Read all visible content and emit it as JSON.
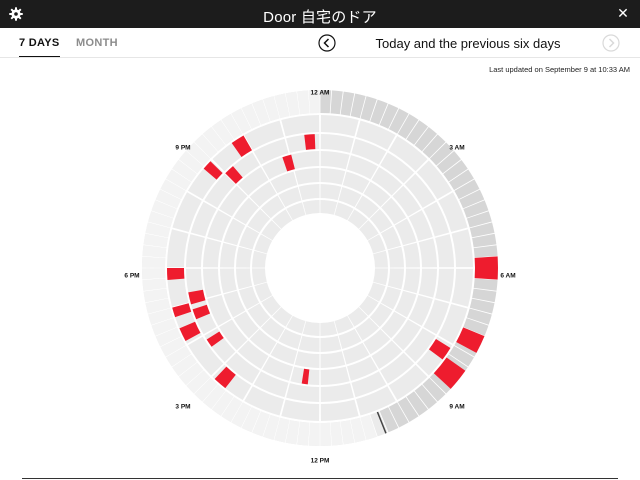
{
  "header": {
    "title": "Door 自宅のドア",
    "settings_icon": "gear-icon",
    "close_icon": "close-icon",
    "close_glyph": "✕"
  },
  "tabs": [
    {
      "label": "7 DAYS",
      "active": true
    },
    {
      "label": "MONTH",
      "active": false
    }
  ],
  "navigation": {
    "prev_icon": "chevron-left-circle-icon",
    "next_icon": "chevron-right-circle-icon",
    "next_enabled": false,
    "range_title": "Today and the previous six days"
  },
  "last_updated": "Last updated on September 9 at 10:33 AM",
  "clock_labels": {
    "12am": "12 AM",
    "3am": "3 AM",
    "6am": "6 AM",
    "9am": "9 AM",
    "12pm": "12 PM",
    "3pm": "3 PM",
    "6pm": "6 PM",
    "9pm": "9 PM"
  },
  "colors": {
    "event": "#ee1c2e",
    "slot": "#ebebeb",
    "today_elapsed": "#d6d6d6",
    "background": "#ffffff",
    "now_marker": "#444444"
  },
  "chart_data": {
    "type": "radial-activity",
    "rings": [
      "today",
      "day -1",
      "day -2",
      "day -3",
      "day -4",
      "day -5",
      "day -6"
    ],
    "now_hour": 10.55,
    "events": [
      {
        "day": 0,
        "start_hour": 5.75,
        "end_hour": 6.25
      },
      {
        "day": 0,
        "start_hour": 7.5,
        "end_hour": 7.9
      },
      {
        "day": 0,
        "start_hour": 8.35,
        "end_hour": 8.85
      },
      {
        "day": 1,
        "start_hour": 8.1,
        "end_hour": 8.45
      },
      {
        "day": 1,
        "start_hour": 20.7,
        "end_hour": 20.95
      },
      {
        "day": 1,
        "start_hour": 21.65,
        "end_hour": 22.0
      },
      {
        "day": 1,
        "start_hour": 16.75,
        "end_hour": 17.0
      },
      {
        "day": 1,
        "start_hour": 17.7,
        "end_hour": 18.0
      },
      {
        "day": 1,
        "start_hour": 16.1,
        "end_hour": 16.45
      },
      {
        "day": 1,
        "start_hour": 14.55,
        "end_hour": 14.9
      },
      {
        "day": 2,
        "start_hour": 23.55,
        "end_hour": 23.85
      },
      {
        "day": 2,
        "start_hour": 21.0,
        "end_hour": 21.3
      },
      {
        "day": 2,
        "start_hour": 16.95,
        "end_hour": 17.3
      },
      {
        "day": 2,
        "start_hour": 16.5,
        "end_hour": 16.8
      },
      {
        "day": 2,
        "start_hour": 15.6,
        "end_hour": 15.85
      },
      {
        "day": 3,
        "start_hour": 22.75,
        "end_hour": 23.05
      },
      {
        "day": 3,
        "start_hour": 12.4,
        "end_hour": 12.6
      }
    ]
  }
}
